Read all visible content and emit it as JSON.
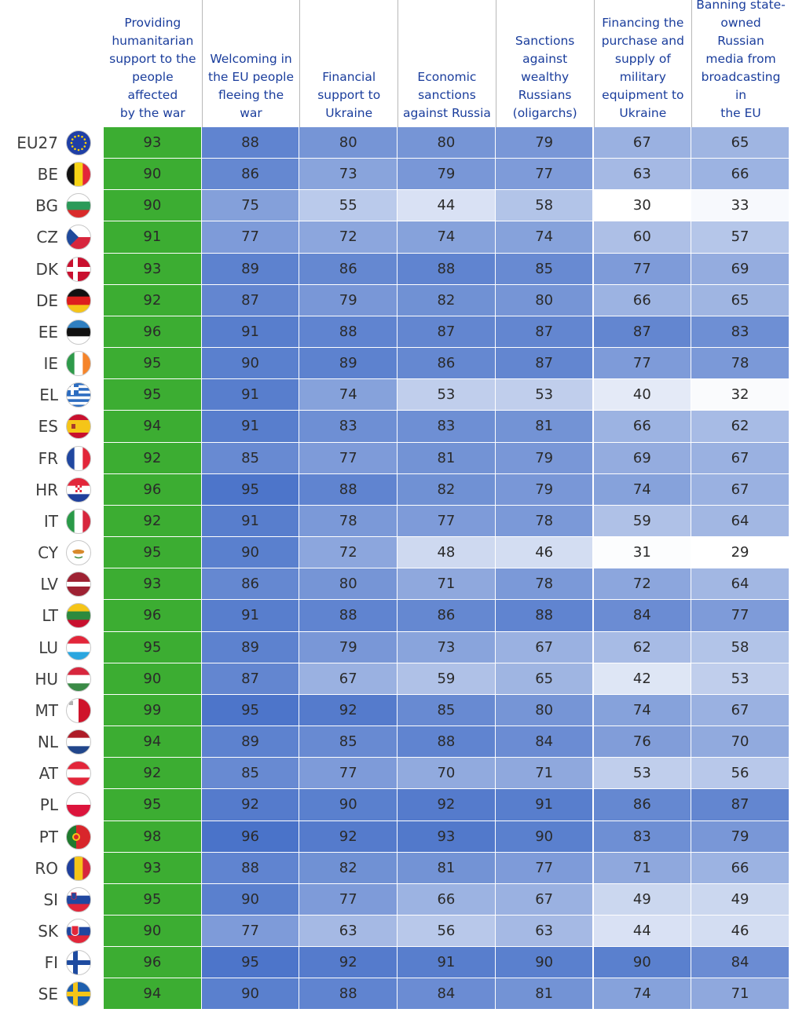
{
  "chart_data": {
    "type": "heatmap",
    "columns": [
      "Providing humanitarian support to the people affected by the war",
      "Welcoming in the EU people fleeing the war",
      "Financial support to Ukraine",
      "Economic sanctions against Russia",
      "Sanctions against wealthy Russians (oligarchs)",
      "Financing the purchase and supply of military equipment to Ukraine",
      "Banning state-owned Russian media from broadcasting in the EU"
    ],
    "column_lines": [
      [
        "Providing",
        "humanitarian",
        "support to the",
        "people affected",
        "by the war"
      ],
      [
        "Welcoming in",
        "the EU people",
        "fleeing the war"
      ],
      [
        "Financial",
        "support to",
        "Ukraine"
      ],
      [
        "Economic",
        "sanctions",
        "against Russia"
      ],
      [
        "Sanctions",
        "against wealthy",
        "Russians",
        "(oligarchs)"
      ],
      [
        "Financing the",
        "purchase and",
        "supply of",
        "military",
        "equipment to",
        "Ukraine"
      ],
      [
        "Banning state-",
        "owned Russian",
        "media from",
        "broadcasting in",
        "the EU"
      ]
    ],
    "rows": [
      {
        "label": "EU27",
        "values": [
          93,
          88,
          80,
          80,
          79,
          67,
          65
        ]
      },
      {
        "label": "BE",
        "values": [
          90,
          86,
          73,
          79,
          77,
          63,
          66
        ]
      },
      {
        "label": "BG",
        "values": [
          90,
          75,
          55,
          44,
          58,
          30,
          33
        ]
      },
      {
        "label": "CZ",
        "values": [
          91,
          77,
          72,
          74,
          74,
          60,
          57
        ]
      },
      {
        "label": "DK",
        "values": [
          93,
          89,
          86,
          88,
          85,
          77,
          69
        ]
      },
      {
        "label": "DE",
        "values": [
          92,
          87,
          79,
          82,
          80,
          66,
          65
        ]
      },
      {
        "label": "EE",
        "values": [
          96,
          91,
          88,
          87,
          87,
          87,
          83
        ]
      },
      {
        "label": "IE",
        "values": [
          95,
          90,
          89,
          86,
          87,
          77,
          78
        ]
      },
      {
        "label": "EL",
        "values": [
          95,
          91,
          74,
          53,
          53,
          40,
          32
        ]
      },
      {
        "label": "ES",
        "values": [
          94,
          91,
          83,
          83,
          81,
          66,
          62
        ]
      },
      {
        "label": "FR",
        "values": [
          92,
          85,
          77,
          81,
          79,
          69,
          67
        ]
      },
      {
        "label": "HR",
        "values": [
          96,
          95,
          88,
          82,
          79,
          74,
          67
        ]
      },
      {
        "label": "IT",
        "values": [
          92,
          91,
          78,
          77,
          78,
          59,
          64
        ]
      },
      {
        "label": "CY",
        "values": [
          95,
          90,
          72,
          48,
          46,
          31,
          29
        ]
      },
      {
        "label": "LV",
        "values": [
          93,
          86,
          80,
          71,
          78,
          72,
          64
        ]
      },
      {
        "label": "LT",
        "values": [
          96,
          91,
          88,
          86,
          88,
          84,
          77
        ]
      },
      {
        "label": "LU",
        "values": [
          95,
          89,
          79,
          73,
          67,
          62,
          58
        ]
      },
      {
        "label": "HU",
        "values": [
          90,
          87,
          67,
          59,
          65,
          42,
          53
        ]
      },
      {
        "label": "MT",
        "values": [
          99,
          95,
          92,
          85,
          80,
          74,
          67
        ]
      },
      {
        "label": "NL",
        "values": [
          94,
          89,
          85,
          88,
          84,
          76,
          70
        ]
      },
      {
        "label": "AT",
        "values": [
          92,
          85,
          77,
          70,
          71,
          53,
          56
        ]
      },
      {
        "label": "PL",
        "values": [
          95,
          92,
          90,
          92,
          91,
          86,
          87
        ]
      },
      {
        "label": "PT",
        "values": [
          98,
          96,
          92,
          93,
          90,
          83,
          79
        ]
      },
      {
        "label": "RO",
        "values": [
          93,
          88,
          82,
          81,
          77,
          71,
          66
        ]
      },
      {
        "label": "SI",
        "values": [
          95,
          90,
          77,
          66,
          67,
          49,
          49
        ]
      },
      {
        "label": "SK",
        "values": [
          90,
          77,
          63,
          56,
          63,
          44,
          46
        ]
      },
      {
        "label": "FI",
        "values": [
          96,
          95,
          92,
          91,
          90,
          90,
          84
        ]
      },
      {
        "label": "SE",
        "values": [
          94,
          90,
          88,
          84,
          81,
          74,
          71
        ]
      }
    ],
    "color_scale": {
      "low": "#ffffff",
      "high": "#4a73c9"
    },
    "first_column_color": "#3cad32",
    "header_text_color": "#1a3d9c"
  },
  "flags": {
    "EU27": "eu-flag",
    "BE": "belgium-flag",
    "BG": "bulgaria-flag",
    "CZ": "czechia-flag",
    "DK": "denmark-flag",
    "DE": "germany-flag",
    "EE": "estonia-flag",
    "IE": "ireland-flag",
    "EL": "greece-flag",
    "ES": "spain-flag",
    "FR": "france-flag",
    "HR": "croatia-flag",
    "IT": "italy-flag",
    "CY": "cyprus-flag",
    "LV": "latvia-flag",
    "LT": "lithuania-flag",
    "LU": "luxembourg-flag",
    "HU": "hungary-flag",
    "MT": "malta-flag",
    "NL": "netherlands-flag",
    "AT": "austria-flag",
    "PL": "poland-flag",
    "PT": "portugal-flag",
    "RO": "romania-flag",
    "SI": "slovenia-flag",
    "SK": "slovakia-flag",
    "FI": "finland-flag",
    "SE": "sweden-flag"
  }
}
